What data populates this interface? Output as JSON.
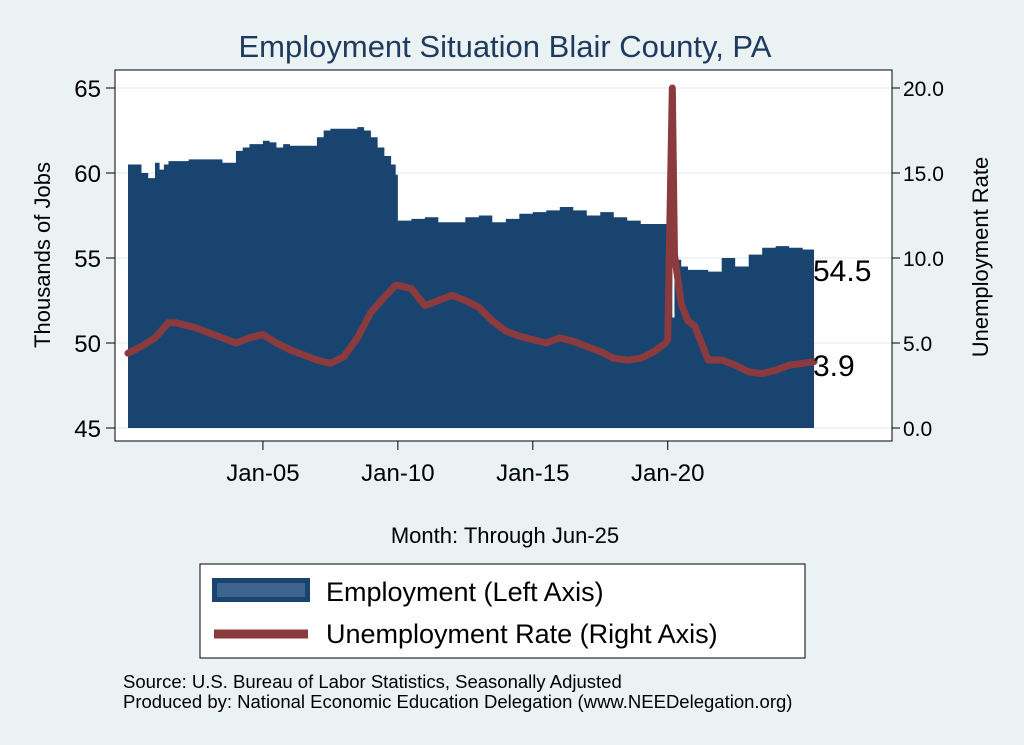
{
  "chart_data": {
    "type": "area+line",
    "title": "Employment Situation Blair  County, PA",
    "xlabel": "Month: Through Jun-25",
    "ylabel_left": "Thousands of Jobs",
    "ylabel_right": "Unemployment Rate",
    "x_ticks": [
      "Jan-05",
      "Jan-10",
      "Jan-15",
      "Jan-20"
    ],
    "x_tick_years": [
      2005,
      2010,
      2015,
      2020
    ],
    "x_range": [
      2000.0,
      2025.42
    ],
    "ylim_left": [
      45,
      65
    ],
    "yticks_left": [
      "45",
      "50",
      "55",
      "60",
      "65"
    ],
    "ylim_right": [
      0,
      20
    ],
    "yticks_right": [
      "0.0",
      "5.0",
      "10.0",
      "15.0",
      "20.0"
    ],
    "grid": true,
    "series": [
      {
        "name": "Employment (Left Axis)",
        "axis": "left",
        "kind": "area",
        "color": "#1a4470",
        "x": [
          2000.0,
          2000.33,
          2000.5,
          2000.75,
          2001.0,
          2001.17,
          2001.33,
          2001.5,
          2001.75,
          2002.0,
          2002.25,
          2002.5,
          2003.0,
          2003.5,
          2004.0,
          2004.25,
          2004.5,
          2005.0,
          2005.25,
          2005.5,
          2005.75,
          2006.0,
          2006.5,
          2007.0,
          2007.25,
          2007.5,
          2008.0,
          2008.5,
          2008.75,
          2009.0,
          2009.25,
          2009.5,
          2009.75,
          2009.92,
          2010.0,
          2010.08,
          2010.5,
          2011.0,
          2011.5,
          2012.0,
          2012.5,
          2013.0,
          2013.5,
          2014.0,
          2014.5,
          2015.0,
          2015.5,
          2016.0,
          2016.5,
          2017.0,
          2017.5,
          2018.0,
          2018.5,
          2019.0,
          2019.5,
          2020.0,
          2020.17,
          2020.25,
          2020.5,
          2020.75,
          2021.0,
          2021.5,
          2022.0,
          2022.5,
          2023.0,
          2023.5,
          2024.0,
          2024.5,
          2025.0,
          2025.42
        ],
        "values": [
          60.5,
          60.5,
          60.0,
          59.7,
          60.6,
          60.2,
          60.5,
          60.7,
          60.7,
          60.7,
          60.8,
          60.8,
          60.8,
          60.6,
          61.3,
          61.5,
          61.7,
          61.9,
          61.8,
          61.5,
          61.7,
          61.6,
          61.6,
          62.1,
          62.5,
          62.6,
          62.6,
          62.7,
          62.5,
          62.1,
          61.5,
          61.0,
          60.5,
          59.9,
          57.2,
          57.2,
          57.3,
          57.4,
          57.1,
          57.1,
          57.4,
          57.5,
          57.1,
          57.3,
          57.6,
          57.7,
          57.8,
          58.0,
          57.8,
          57.5,
          57.7,
          57.4,
          57.2,
          57.0,
          57.0,
          57.0,
          51.5,
          54.9,
          54.5,
          54.3,
          54.3,
          54.2,
          55.0,
          54.5,
          55.2,
          55.6,
          55.7,
          55.6,
          55.5,
          54.5
        ]
      },
      {
        "name": "Unemployment Rate (Right Axis)",
        "axis": "right",
        "kind": "line",
        "color": "#8b3a3e",
        "x": [
          2000.0,
          2000.5,
          2001.0,
          2001.5,
          2001.75,
          2002.0,
          2002.5,
          2003.0,
          2003.5,
          2004.0,
          2004.5,
          2005.0,
          2005.5,
          2006.0,
          2006.5,
          2007.0,
          2007.5,
          2008.0,
          2008.5,
          2009.0,
          2009.5,
          2009.92,
          2010.0,
          2010.25,
          2010.5,
          2011.0,
          2011.5,
          2012.0,
          2012.5,
          2013.0,
          2013.5,
          2014.0,
          2014.5,
          2015.0,
          2015.5,
          2016.0,
          2016.5,
          2017.0,
          2017.5,
          2018.0,
          2018.5,
          2019.0,
          2019.5,
          2019.92,
          2020.0,
          2020.17,
          2020.25,
          2020.5,
          2020.75,
          2021.0,
          2021.5,
          2022.0,
          2022.5,
          2023.0,
          2023.5,
          2024.0,
          2024.5,
          2025.0,
          2025.42
        ],
        "values": [
          4.4,
          4.8,
          5.3,
          6.2,
          6.2,
          6.1,
          5.9,
          5.6,
          5.3,
          5.0,
          5.3,
          5.5,
          5.0,
          4.6,
          4.3,
          4.0,
          3.8,
          4.2,
          5.3,
          6.8,
          7.7,
          8.4,
          8.4,
          8.3,
          8.2,
          7.2,
          7.5,
          7.8,
          7.5,
          7.1,
          6.3,
          5.7,
          5.4,
          5.2,
          5.0,
          5.3,
          5.1,
          4.8,
          4.5,
          4.1,
          4.0,
          4.1,
          4.5,
          5.0,
          5.2,
          20.0,
          10.2,
          7.3,
          6.3,
          6.0,
          4.0,
          4.0,
          3.7,
          3.3,
          3.2,
          3.4,
          3.7,
          3.8,
          3.9
        ]
      }
    ],
    "end_labels": {
      "employment": "54.5",
      "unemployment": "3.9"
    },
    "legend": {
      "position": "bottom",
      "items": [
        "Employment (Left Axis)",
        "Unemployment Rate (Right Axis)"
      ]
    }
  },
  "footer": {
    "source": "Source: U.S. Bureau of Labor Statistics, Seasonally Adjusted",
    "produced": "Produced by: National Economic Education Delegation (www.NEEDelegation.org)"
  }
}
